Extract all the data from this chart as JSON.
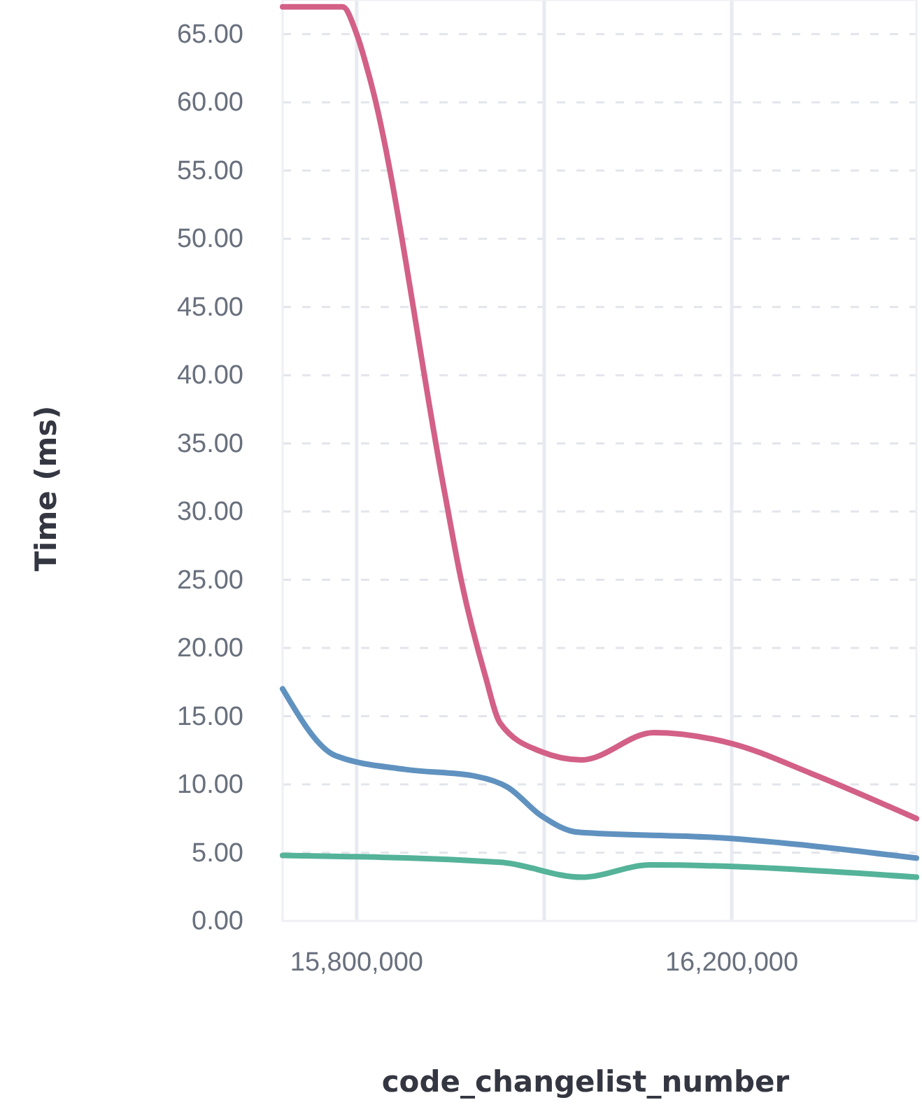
{
  "chart_data": {
    "type": "line",
    "xlabel": "code_changelist_number",
    "ylabel": "Time (ms)",
    "xlim": [
      15721000,
      16397000
    ],
    "xticks": [
      {
        "value": 15800000,
        "label": "15,800,000"
      },
      {
        "value": 16000000,
        "label": null
      },
      {
        "value": 16200000,
        "label": "16,200,000"
      }
    ],
    "ylim": [
      0,
      67.5
    ],
    "yticks": [
      {
        "value": 0,
        "label": "0.00"
      },
      {
        "value": 5,
        "label": "5.00"
      },
      {
        "value": 10,
        "label": "10.00"
      },
      {
        "value": 15,
        "label": "15.00"
      },
      {
        "value": 20,
        "label": "20.00"
      },
      {
        "value": 25,
        "label": "25.00"
      },
      {
        "value": 30,
        "label": "30.00"
      },
      {
        "value": 35,
        "label": "35.00"
      },
      {
        "value": 40,
        "label": "40.00"
      },
      {
        "value": 45,
        "label": "45.00"
      },
      {
        "value": 50,
        "label": "50.00"
      },
      {
        "value": 55,
        "label": "55.00"
      },
      {
        "value": 60,
        "label": "60.00"
      },
      {
        "value": 65,
        "label": "65.00"
      }
    ],
    "grid": true,
    "marker": "none",
    "line_style": "solid",
    "series": [
      {
        "color": "#d36086",
        "x": [
          15721000,
          15785000,
          15800000,
          15815000,
          15893000,
          15912000,
          15937000,
          15953000,
          15997000,
          16040000,
          16117000,
          16200000,
          16285000,
          16397000
        ],
        "values": [
          67,
          67,
          65,
          61.5,
          31.7,
          24.8,
          18,
          14.5,
          12.4,
          11.8,
          13.8,
          13,
          10.8,
          7.5
        ]
      },
      {
        "color": "#6092c0",
        "x": [
          15721000,
          15777600,
          15852000,
          15927000,
          15961000,
          15997000,
          16036000,
          16185000,
          16397000
        ],
        "values": [
          17,
          12.1,
          11.1,
          10.6,
          9.8,
          7.7,
          6.5,
          6.1,
          4.6
        ]
      },
      {
        "color": "#54b399",
        "x": [
          15721000,
          15953000,
          16040000,
          16113000,
          16397000
        ],
        "values": [
          4.8,
          4.3,
          3.2,
          4.1,
          3.2
        ]
      }
    ]
  }
}
